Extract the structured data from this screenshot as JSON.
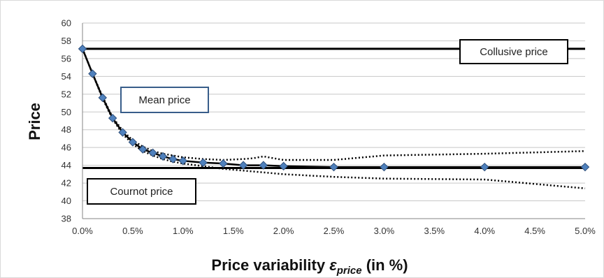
{
  "chart_data": {
    "type": "line",
    "xlabel_main": "Price variability ",
    "xlabel_symbol": "ε",
    "xlabel_subscript": "price",
    "xlabel_tail": " (in %)",
    "ylabel": "Price",
    "xlim": [
      0,
      5
    ],
    "ylim": [
      38,
      60
    ],
    "x_ticks": [
      0,
      0.5,
      1,
      1.5,
      2,
      2.5,
      3,
      3.5,
      4,
      4.5,
      5
    ],
    "x_tick_labels": [
      "0.0%",
      "0.5%",
      "1.0%",
      "1.5%",
      "2.0%",
      "2.5%",
      "3.0%",
      "3.5%",
      "4.0%",
      "4.5%",
      "5.0%"
    ],
    "y_ticks": [
      38,
      40,
      42,
      44,
      46,
      48,
      50,
      52,
      54,
      56,
      58,
      60
    ],
    "y_tick_labels": [
      "38",
      "40",
      "42",
      "44",
      "46",
      "48",
      "50",
      "52",
      "54",
      "56",
      "58",
      "60"
    ],
    "grid": "horizontal",
    "series": [
      {
        "style": "solid-with-diamond-markers",
        "color": "#4f81bd",
        "x": [
          0,
          0.1,
          0.2,
          0.3,
          0.4,
          0.5,
          0.6,
          0.7,
          0.8,
          0.9,
          1.0,
          1.2,
          1.4,
          1.6,
          1.8,
          2.0,
          2.5,
          3.0,
          4.0,
          5.0
        ],
        "y": [
          57.1,
          54.3,
          51.6,
          49.3,
          47.7,
          46.6,
          45.8,
          45.4,
          45.0,
          44.7,
          44.5,
          44.3,
          44.2,
          44.0,
          44.0,
          43.9,
          43.8,
          43.8,
          43.8,
          43.8
        ]
      },
      {
        "style": "dotted",
        "x": [
          0,
          0.1,
          0.2,
          0.3,
          0.4,
          0.5,
          0.6,
          0.7,
          0.8,
          0.9,
          1.0,
          1.2,
          1.4,
          1.6,
          1.7,
          1.8,
          1.9,
          2.0,
          2.5,
          3.0,
          4.0,
          5.0
        ],
        "y": [
          57.1,
          54.3,
          51.7,
          49.4,
          47.9,
          46.8,
          46.1,
          45.6,
          45.3,
          45.1,
          44.9,
          44.7,
          44.6,
          44.7,
          44.8,
          45.0,
          44.8,
          44.6,
          44.6,
          45.1,
          45.3,
          45.6
        ]
      },
      {
        "style": "dotted",
        "x": [
          0,
          0.1,
          0.2,
          0.3,
          0.4,
          0.5,
          0.6,
          0.7,
          0.8,
          0.9,
          1.0,
          1.2,
          1.4,
          1.6,
          1.8,
          2.0,
          2.5,
          3.0,
          4.0,
          5.0
        ],
        "y": [
          57.1,
          54.3,
          51.5,
          49.2,
          47.5,
          46.4,
          45.6,
          45.1,
          44.7,
          44.4,
          44.2,
          43.9,
          43.6,
          43.4,
          43.2,
          43.0,
          42.7,
          42.5,
          42.4,
          41.4
        ]
      }
    ],
    "reference_lines": [
      {
        "name": "Collusive price",
        "y": 57.1
      },
      {
        "name": "Cournot price",
        "y": 43.7
      }
    ],
    "annotations": [
      {
        "text": "Collusive price"
      },
      {
        "text": "Mean price"
      },
      {
        "text": "Cournot price"
      }
    ]
  }
}
